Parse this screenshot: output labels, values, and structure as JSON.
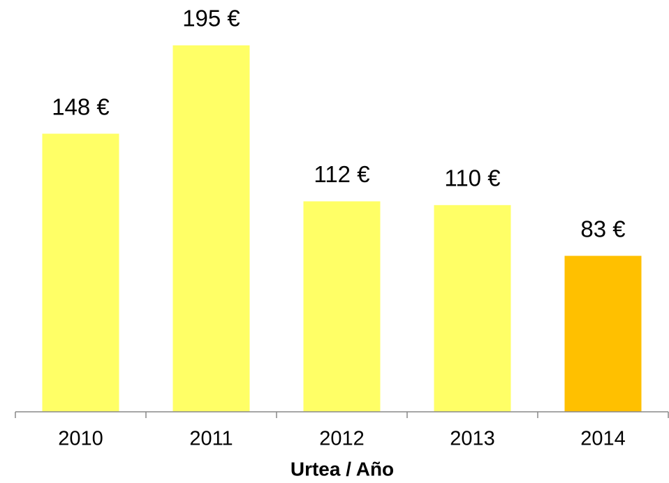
{
  "chart_data": {
    "type": "bar",
    "categories": [
      "2010",
      "2011",
      "2012",
      "2013",
      "2014"
    ],
    "values": [
      148,
      195,
      112,
      110,
      83
    ],
    "value_labels": [
      "148 €",
      "195 €",
      "112 €",
      "110 €",
      "83 €"
    ],
    "colors": [
      "#FFFF66",
      "#FFFF66",
      "#FFFF66",
      "#FFFF66",
      "#FFC000"
    ],
    "x_label": "Urtea / Año"
  }
}
